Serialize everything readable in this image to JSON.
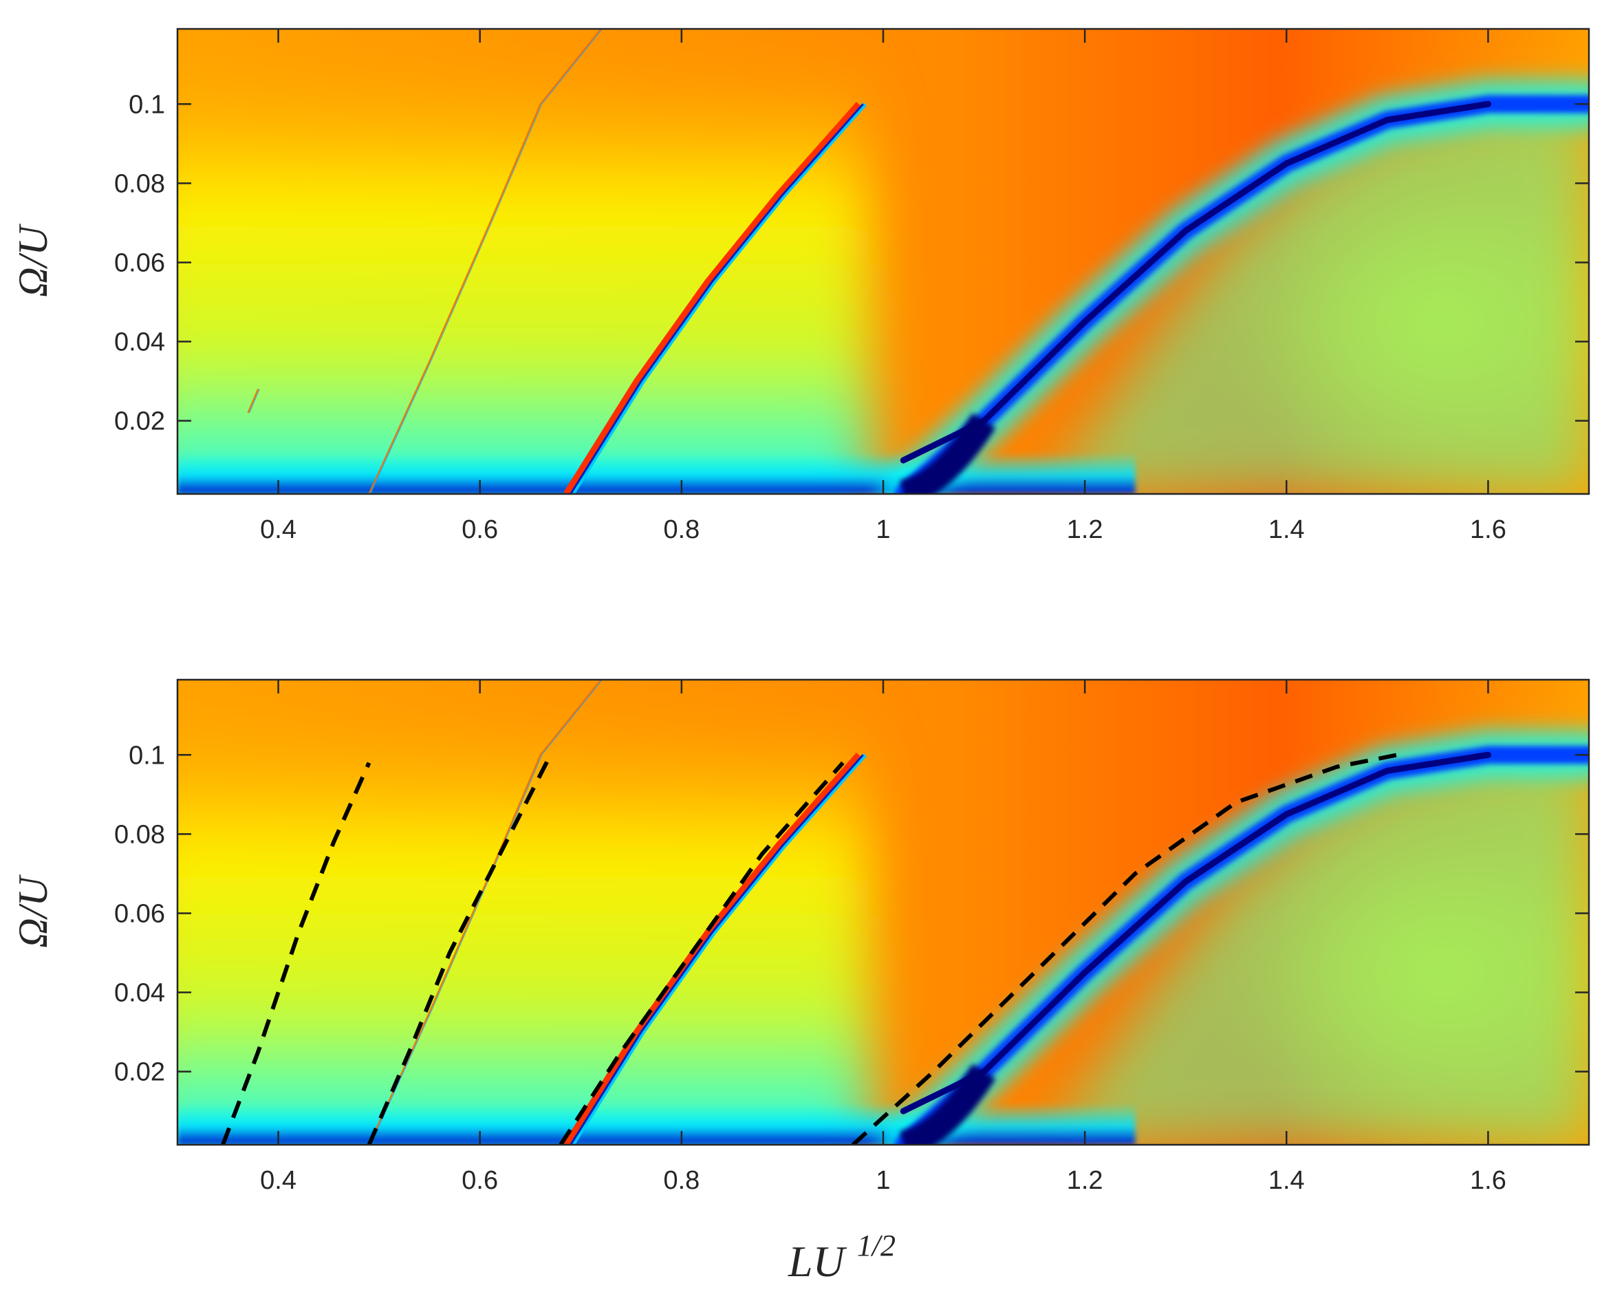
{
  "chart_data": [
    {
      "type": "heatmap",
      "title": "",
      "xlabel": "",
      "ylabel": "Ω/U",
      "xlim": [
        0.3,
        1.7
      ],
      "ylim": [
        0.0015,
        0.119
      ],
      "xticks": [
        0.4,
        0.6,
        0.8,
        1.0,
        1.2,
        1.4,
        1.6
      ],
      "xtick_labels": [
        "0.4",
        "0.6",
        "0.8",
        "1",
        "1.2",
        "1.4",
        "1.6"
      ],
      "yticks": [
        0.02,
        0.04,
        0.06,
        0.08,
        0.1
      ],
      "ytick_labels": [
        "0.02",
        "0.04",
        "0.06",
        "0.08",
        "0.1"
      ],
      "colormap": "jet",
      "colors": {
        "low": "#00008f",
        "mid": "#ffff00",
        "high": "#ff5a00",
        "background": "#ffa800"
      },
      "features": [
        {
          "name": "dark resonance band",
          "points": [
            [
              1.02,
              0.0015
            ],
            [
              1.1,
              0.02
            ],
            [
              1.2,
              0.045
            ],
            [
              1.3,
              0.068
            ],
            [
              1.4,
              0.085
            ],
            [
              1.5,
              0.096
            ],
            [
              1.6,
              0.1
            ],
            [
              1.7,
              0.1
            ]
          ]
        },
        {
          "name": "thin resonance line 2",
          "points": [
            [
              0.69,
              0.0015
            ],
            [
              0.76,
              0.03
            ],
            [
              0.83,
              0.055
            ],
            [
              0.9,
              0.077
            ],
            [
              0.98,
              0.1
            ]
          ]
        },
        {
          "name": "thin resonance line 1",
          "points": [
            [
              0.49,
              0.0015
            ],
            [
              0.55,
              0.035
            ],
            [
              0.61,
              0.07
            ],
            [
              0.66,
              0.1
            ],
            [
              0.72,
              0.119
            ]
          ]
        },
        {
          "name": "faint trace",
          "points": [
            [
              0.37,
              0.022
            ],
            [
              0.38,
              0.028
            ]
          ]
        }
      ],
      "grid": false
    },
    {
      "type": "heatmap",
      "title": "",
      "xlabel": "LU",
      "xlabel_superscript": "1/2",
      "ylabel": "Ω/U",
      "xlim": [
        0.3,
        1.7
      ],
      "ylim": [
        0.0015,
        0.119
      ],
      "xticks": [
        0.4,
        0.6,
        0.8,
        1.0,
        1.2,
        1.4,
        1.6
      ],
      "xtick_labels": [
        "0.4",
        "0.6",
        "0.8",
        "1",
        "1.2",
        "1.4",
        "1.6"
      ],
      "yticks": [
        0.02,
        0.04,
        0.06,
        0.08,
        0.1
      ],
      "ytick_labels": [
        "0.02",
        "0.04",
        "0.06",
        "0.08",
        "0.1"
      ],
      "colormap": "jet",
      "colors": {
        "low": "#00008f",
        "mid": "#ffff00",
        "high": "#ff5a00",
        "background": "#ffa800",
        "dashed": "#000000"
      },
      "features": [
        {
          "name": "dark resonance band",
          "points": [
            [
              1.02,
              0.0015
            ],
            [
              1.1,
              0.02
            ],
            [
              1.2,
              0.045
            ],
            [
              1.3,
              0.068
            ],
            [
              1.4,
              0.085
            ],
            [
              1.5,
              0.096
            ],
            [
              1.6,
              0.1
            ],
            [
              1.7,
              0.1
            ]
          ]
        },
        {
          "name": "thin resonance line 2",
          "points": [
            [
              0.69,
              0.0015
            ],
            [
              0.76,
              0.03
            ],
            [
              0.83,
              0.055
            ],
            [
              0.9,
              0.077
            ],
            [
              0.98,
              0.1
            ]
          ]
        },
        {
          "name": "thin resonance line 1",
          "points": [
            [
              0.49,
              0.0015
            ],
            [
              0.55,
              0.035
            ],
            [
              0.61,
              0.07
            ],
            [
              0.66,
              0.1
            ],
            [
              0.72,
              0.119
            ]
          ]
        }
      ],
      "dashed_curves": [
        {
          "points": [
            [
              0.345,
              0.0015
            ],
            [
              0.38,
              0.025
            ],
            [
              0.42,
              0.055
            ],
            [
              0.455,
              0.078
            ],
            [
              0.49,
              0.098
            ]
          ]
        },
        {
          "points": [
            [
              0.49,
              0.0015
            ],
            [
              0.53,
              0.025
            ],
            [
              0.57,
              0.05
            ],
            [
              0.62,
              0.075
            ],
            [
              0.67,
              0.1
            ]
          ]
        },
        {
          "points": [
            [
              0.68,
              0.0015
            ],
            [
              0.74,
              0.025
            ],
            [
              0.81,
              0.05
            ],
            [
              0.88,
              0.075
            ],
            [
              0.96,
              0.098
            ]
          ]
        },
        {
          "points": [
            [
              0.97,
              0.0015
            ],
            [
              1.05,
              0.02
            ],
            [
              1.15,
              0.045
            ],
            [
              1.25,
              0.07
            ],
            [
              1.35,
              0.088
            ],
            [
              1.45,
              0.097
            ],
            [
              1.51,
              0.1
            ]
          ]
        }
      ],
      "grid": false
    }
  ]
}
